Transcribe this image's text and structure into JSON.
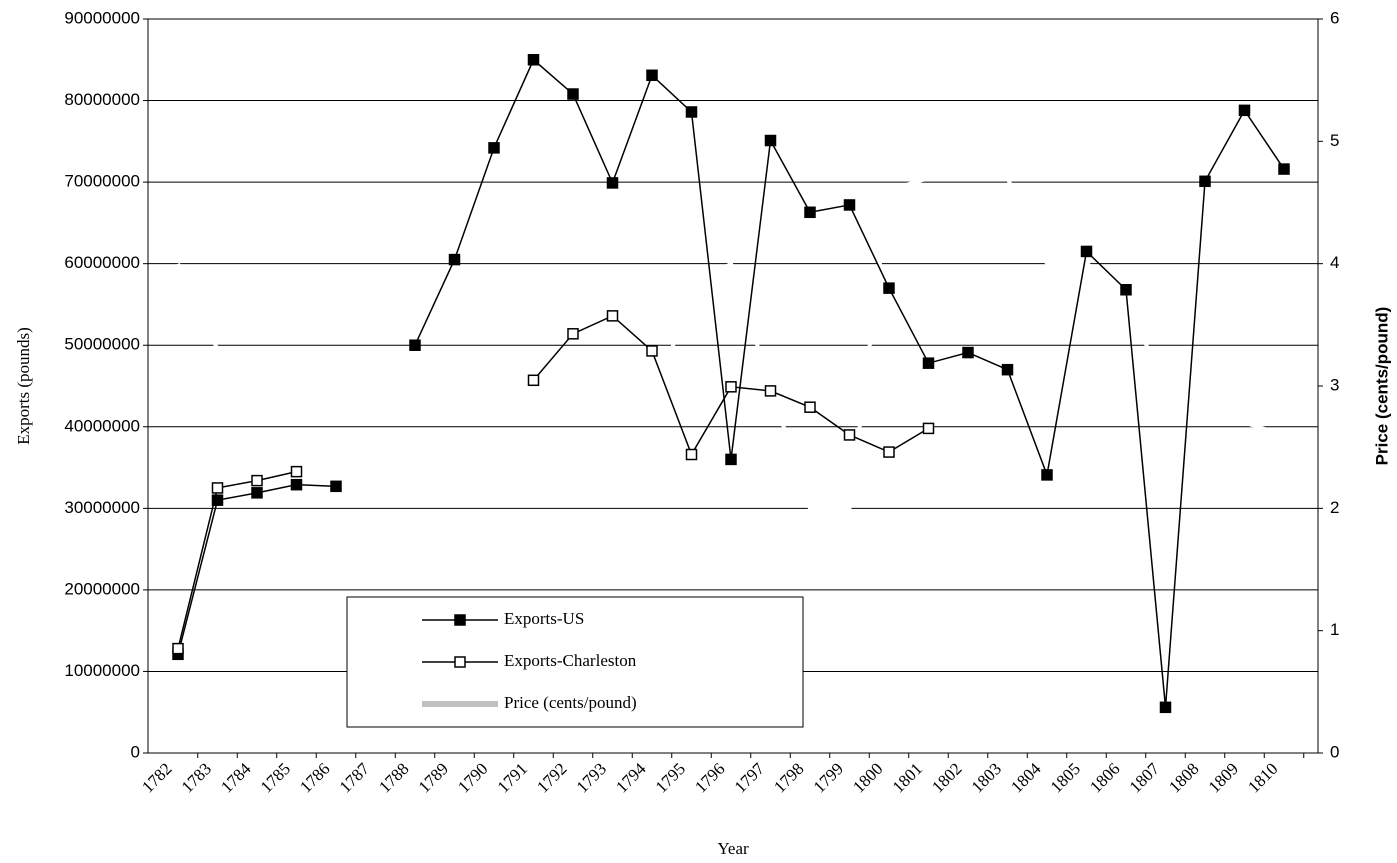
{
  "chart_data": {
    "type": "line",
    "xlabel": "Year",
    "ylabel": "Exports (pounds)",
    "y2label": "Price (cents/pound)",
    "categories": [
      "1782",
      "1783",
      "1784",
      "1785",
      "1786",
      "1787",
      "1788",
      "1789",
      "1790",
      "1791",
      "1792",
      "1793",
      "1794",
      "1795",
      "1796",
      "1797",
      "1798",
      "1799",
      "1800",
      "1801",
      "1802",
      "1803",
      "1804",
      "1805",
      "1806",
      "1807",
      "1808",
      "1809",
      "1810"
    ],
    "series": [
      {
        "name": "Exports-US",
        "color": "#000000",
        "marker": "filled-square",
        "values": [
          12100000,
          31000000,
          31900000,
          32900000,
          32700000,
          null,
          50000000,
          60500000,
          74200000,
          85000000,
          80800000,
          69900000,
          83100000,
          78600000,
          36000000,
          75100000,
          66300000,
          67200000,
          57000000,
          47800000,
          49100000,
          47000000,
          34100000,
          61500000,
          56800000,
          5600000,
          70100000,
          78800000,
          71600000
        ]
      },
      {
        "name": "Exports-Charleston",
        "color": "#000000",
        "marker": "open-square",
        "values": [
          12800000,
          32500000,
          33400000,
          34500000,
          null,
          null,
          null,
          null,
          null,
          45700000,
          51400000,
          53600000,
          49300000,
          36600000,
          44900000,
          44400000,
          42400000,
          39000000,
          36900000,
          39800000,
          null,
          null,
          null,
          null,
          null,
          null,
          null,
          null,
          null
        ]
      },
      {
        "name": "Price (cents/pound)",
        "color": "#ffffff",
        "legend_color": "#c0c0c0",
        "axis": "y2",
        "values": [
          4.0,
          3.3,
          3.3,
          3.3,
          3.1,
          2.9,
          2.7,
          2.8,
          2.9,
          2.8,
          2.7,
          2.7,
          2.8,
          3.8,
          4.0,
          3.0,
          2.0,
          2.0,
          4.6,
          4.7,
          4.7,
          4.7,
          4.0,
          4.0,
          3.8,
          2.9,
          2.7,
          2.7,
          2.6
        ]
      }
    ],
    "ylim": [
      0,
      90000000
    ],
    "yticks": [
      0,
      10000000,
      20000000,
      30000000,
      40000000,
      50000000,
      60000000,
      70000000,
      80000000,
      90000000
    ],
    "y2lim": [
      0,
      6
    ],
    "y2ticks": [
      0,
      1,
      2,
      3,
      4,
      5,
      6
    ],
    "grid": true
  }
}
